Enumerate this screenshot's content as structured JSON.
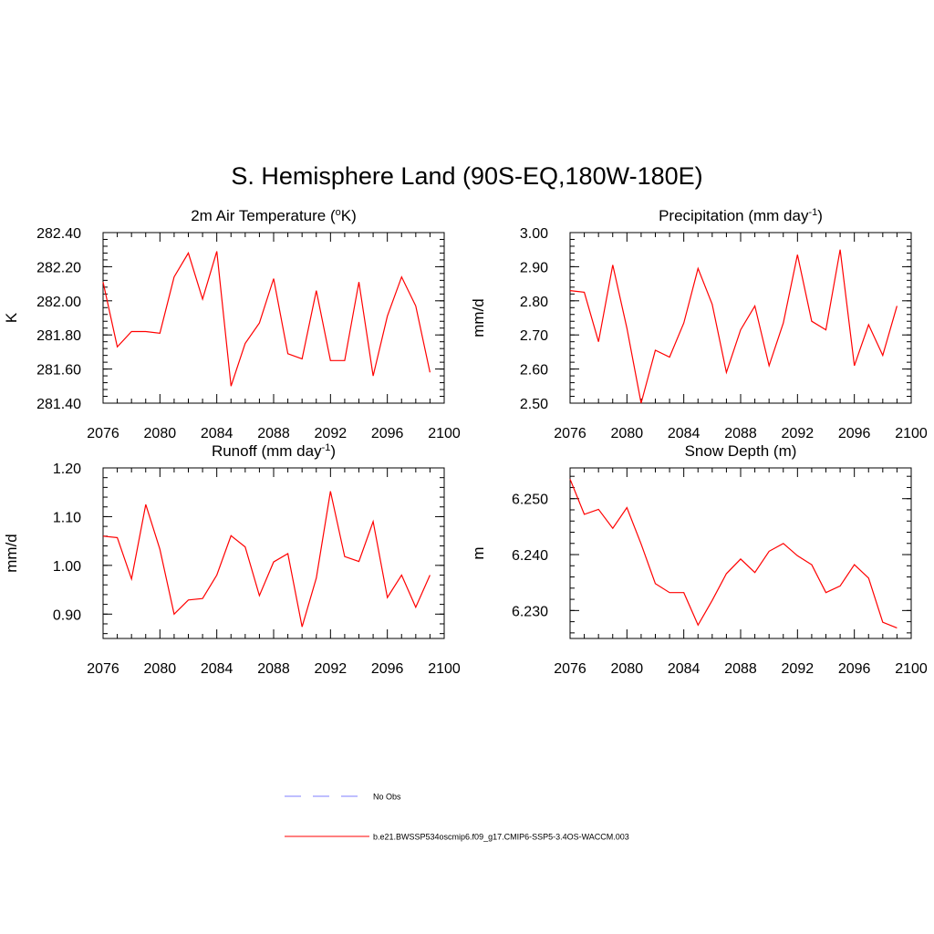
{
  "title": "S. Hemisphere Land (90S-EQ,180W-180E)",
  "colors": {
    "model": "#ff0000",
    "obs": "#9999ff",
    "axis": "#000000"
  },
  "legend": {
    "obs_label": "No Obs",
    "model_label": "b.e21.BWSSP534oscmip6.f09_g17.CMIP6-SSP5-3.4OS-WACCM.003"
  },
  "chart_data": [
    {
      "type": "line",
      "title_main": "2m Air Temperature (",
      "title_sup_pre": "o",
      "title_rest": "K)",
      "title_sup_post": "",
      "title_tail": "",
      "ylabel": "K",
      "xlim": [
        2076,
        2100
      ],
      "xticks": [
        "2076",
        "2080",
        "2084",
        "2088",
        "2092",
        "2096",
        "2100"
      ],
      "ylim": [
        281.4,
        282.4
      ],
      "yticks": [
        "281.40",
        "281.60",
        "281.80",
        "282.00",
        "282.20",
        "282.40"
      ],
      "ytick_values": [
        281.4,
        281.6,
        281.8,
        282.0,
        282.2,
        282.4
      ],
      "x": [
        2076,
        2077,
        2078,
        2079,
        2080,
        2081,
        2082,
        2083,
        2084,
        2085,
        2086,
        2087,
        2088,
        2089,
        2090,
        2091,
        2092,
        2093,
        2094,
        2095,
        2096,
        2097,
        2098,
        2099
      ],
      "series": [
        {
          "name": "b.e21.BWSSP534oscmip6.f09_g17.CMIP6-SSP5-3.4OS-WACCM.003",
          "values": [
            282.11,
            281.73,
            281.82,
            281.82,
            281.81,
            282.14,
            282.28,
            282.01,
            282.29,
            281.5,
            281.75,
            281.87,
            282.13,
            281.69,
            281.66,
            282.06,
            281.65,
            281.65,
            282.11,
            281.56,
            281.91,
            282.14,
            281.97,
            281.58
          ]
        }
      ]
    },
    {
      "type": "line",
      "title_main": "Precipitation (mm day",
      "title_sup_pre": "",
      "title_rest": "",
      "title_sup_post": "-1",
      "title_tail": ")",
      "ylabel": "mm/d",
      "xlim": [
        2076,
        2100
      ],
      "xticks": [
        "2076",
        "2080",
        "2084",
        "2088",
        "2092",
        "2096",
        "2100"
      ],
      "ylim": [
        2.5,
        3.0
      ],
      "yticks": [
        "2.50",
        "2.60",
        "2.70",
        "2.80",
        "2.90",
        "3.00"
      ],
      "ytick_values": [
        2.5,
        2.6,
        2.7,
        2.8,
        2.9,
        3.0
      ],
      "x": [
        2076,
        2077,
        2078,
        2079,
        2080,
        2081,
        2082,
        2083,
        2084,
        2085,
        2086,
        2087,
        2088,
        2089,
        2090,
        2091,
        2092,
        2093,
        2094,
        2095,
        2096,
        2097,
        2098,
        2099
      ],
      "series": [
        {
          "name": "b.e21.BWSSP534oscmip6.f09_g17.CMIP6-SSP5-3.4OS-WACCM.003",
          "values": [
            2.83,
            2.825,
            2.68,
            2.905,
            2.72,
            2.5,
            2.655,
            2.635,
            2.735,
            2.895,
            2.79,
            2.59,
            2.715,
            2.785,
            2.61,
            2.735,
            2.935,
            2.74,
            2.715,
            2.95,
            2.61,
            2.73,
            2.64,
            2.785
          ]
        }
      ]
    },
    {
      "type": "line",
      "title_main": "Runoff (mm day",
      "title_sup_pre": "",
      "title_rest": "",
      "title_sup_post": "-1",
      "title_tail": ")",
      "ylabel": "mm/d",
      "xlim": [
        2076,
        2100
      ],
      "xticks": [
        "2076",
        "2080",
        "2084",
        "2088",
        "2092",
        "2096",
        "2100"
      ],
      "ylim": [
        0.85,
        1.2
      ],
      "yticks": [
        "0.90",
        "1.00",
        "1.10",
        "1.20"
      ],
      "ytick_values": [
        0.9,
        1.0,
        1.1,
        1.2
      ],
      "x": [
        2076,
        2077,
        2078,
        2079,
        2080,
        2081,
        2082,
        2083,
        2084,
        2085,
        2086,
        2087,
        2088,
        2089,
        2090,
        2091,
        2092,
        2093,
        2094,
        2095,
        2096,
        2097,
        2098,
        2099
      ],
      "series": [
        {
          "name": "b.e21.BWSSP534oscmip6.f09_g17.CMIP6-SSP5-3.4OS-WACCM.003",
          "values": [
            1.06,
            1.057,
            0.972,
            1.125,
            1.033,
            0.9,
            0.929,
            0.932,
            0.98,
            1.061,
            1.038,
            0.938,
            1.007,
            1.024,
            0.874,
            0.974,
            1.152,
            1.018,
            1.008,
            1.09,
            0.934,
            0.98,
            0.914,
            0.98
          ]
        }
      ]
    },
    {
      "type": "line",
      "title_main": "Snow Depth (m)",
      "title_sup_pre": "",
      "title_rest": "",
      "title_sup_post": "",
      "title_tail": "",
      "ylabel": "m",
      "xlim": [
        2076,
        2100
      ],
      "xticks": [
        "2076",
        "2080",
        "2084",
        "2088",
        "2092",
        "2096",
        "2100"
      ],
      "ylim": [
        6.225,
        6.2555
      ],
      "yticks": [
        "6.230",
        "6.240",
        "6.250"
      ],
      "ytick_values": [
        6.23,
        6.24,
        6.25
      ],
      "x": [
        2076,
        2077,
        2078,
        2079,
        2080,
        2081,
        2082,
        2083,
        2084,
        2085,
        2086,
        2087,
        2088,
        2089,
        2090,
        2091,
        2092,
        2093,
        2094,
        2095,
        2096,
        2097,
        2098,
        2099
      ],
      "series": [
        {
          "name": "b.e21.BWSSP534oscmip6.f09_g17.CMIP6-SSP5-3.4OS-WACCM.003",
          "values": [
            6.2535,
            6.2472,
            6.2481,
            6.2447,
            6.2484,
            6.2419,
            6.2348,
            6.2332,
            6.2332,
            6.2274,
            6.2318,
            6.2366,
            6.2392,
            6.2368,
            6.2406,
            6.242,
            6.2398,
            6.2382,
            6.2332,
            6.2344,
            6.2382,
            6.2358,
            6.2279,
            6.2269
          ]
        }
      ]
    }
  ]
}
